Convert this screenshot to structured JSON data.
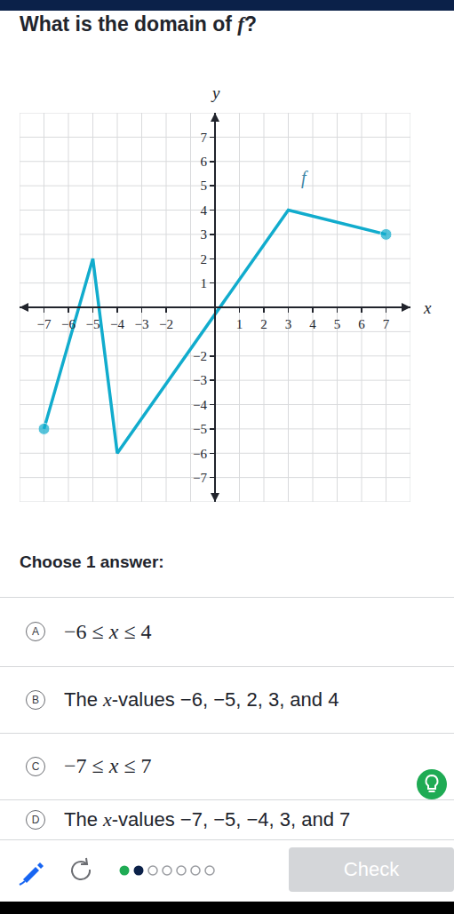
{
  "question": "What is the domain of f?",
  "chart_data": {
    "type": "line",
    "x": [
      -7,
      -5,
      -4,
      3,
      7
    ],
    "series": [
      {
        "name": "f",
        "color": "#11accd",
        "values": [
          -5,
          2,
          -6,
          4,
          3
        ]
      }
    ],
    "marker": "endpoints",
    "xlim": [
      -8,
      8
    ],
    "ylim": [
      -8,
      8
    ],
    "xticks": [
      -7,
      -6,
      -5,
      -4,
      -3,
      -2,
      1,
      2,
      3,
      4,
      5,
      6,
      7
    ],
    "yticks": [
      -7,
      -6,
      -5,
      -4,
      -3,
      -2,
      1,
      2,
      3,
      4,
      5,
      6,
      7
    ],
    "x_label": "x",
    "y_label": "y",
    "grid": true
  },
  "prompt": "Choose 1 answer:",
  "choices": [
    {
      "letter": "A",
      "text": "−6 ≤ x ≤ 4",
      "math": true
    },
    {
      "letter": "B",
      "text": "The x-values −6, −5, 2, 3, and 4",
      "math": false
    },
    {
      "letter": "C",
      "text": "−7 ≤ x ≤ 7",
      "math": true
    },
    {
      "letter": "D",
      "text": "The x-values −7, −5, −4, 3, and 7",
      "math": false
    }
  ],
  "progress": {
    "done": 2,
    "total": 7
  },
  "button": "Check"
}
